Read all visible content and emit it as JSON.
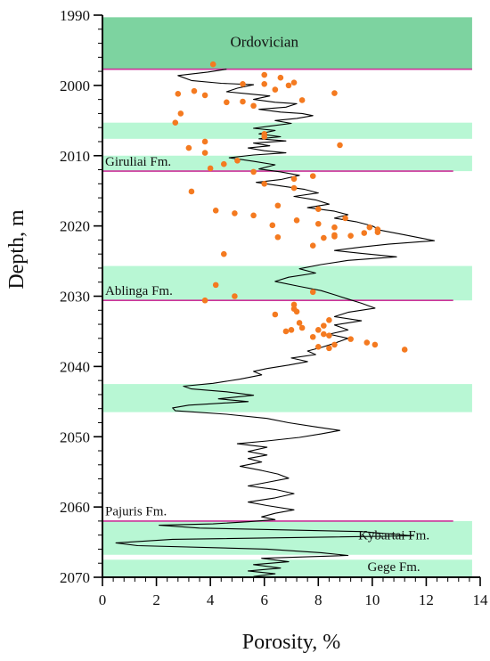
{
  "chart_data": {
    "type": "scatter",
    "xlabel": "Porosity, %",
    "ylabel": "Depth, m",
    "xlim": [
      0,
      14
    ],
    "ylim": [
      1990,
      2070
    ],
    "x_ticks": [
      0,
      2,
      4,
      6,
      8,
      10,
      12,
      14
    ],
    "y_ticks": [
      1990,
      2000,
      2010,
      2020,
      2030,
      2040,
      2050,
      2060,
      2070
    ],
    "grid": false,
    "colors": {
      "ordovician_band": "#7dd3a0",
      "interval_band": "#b8f7d4",
      "boundary_line": "#cc3399",
      "log_curve": "#000000",
      "core_points": "#f47a20",
      "axes": "#000000"
    },
    "zones": [
      {
        "label": "Ordovician",
        "top": 1990.3,
        "bottom": 1997.8,
        "kind": "dark"
      },
      {
        "label": "",
        "top": 2005.3,
        "bottom": 2007.6,
        "kind": "light"
      },
      {
        "label": "",
        "top": 2010.0,
        "bottom": 2012.2,
        "kind": "light"
      },
      {
        "label": "",
        "top": 2025.7,
        "bottom": 2030.6,
        "kind": "light"
      },
      {
        "label": "",
        "top": 2042.5,
        "bottom": 2046.5,
        "kind": "light"
      },
      {
        "label": "",
        "top": 2062.0,
        "bottom": 2066.8,
        "kind": "light"
      },
      {
        "label": "",
        "top": 2067.5,
        "bottom": 2070.0,
        "kind": "light"
      }
    ],
    "boundaries": [
      {
        "depth": 1997.7,
        "x_end": 13.7
      },
      {
        "depth": 2012.2,
        "x_end": 13.0
      },
      {
        "depth": 2030.6,
        "x_end": 13.0
      },
      {
        "depth": 2062.0,
        "x_end": 13.0
      }
    ],
    "formation_labels": [
      {
        "text": "Ordovician",
        "x": 6.0,
        "y": 1994.5,
        "anchor": "middle"
      },
      {
        "text": "Giruliai Fm.",
        "x": 0.1,
        "y": 2011.4,
        "anchor": "start"
      },
      {
        "text": "Ablinga Fm.",
        "x": 0.1,
        "y": 2029.8,
        "anchor": "start"
      },
      {
        "text": "Pajuris Fm.",
        "x": 0.1,
        "y": 2061.2,
        "anchor": "start"
      },
      {
        "text": "Kybartai Fm.",
        "x": 10.8,
        "y": 2064.6,
        "anchor": "middle"
      },
      {
        "text": "Gege Fm.",
        "x": 10.8,
        "y": 2069.1,
        "anchor": "middle"
      }
    ],
    "series": [
      {
        "name": "",
        "kind": "line",
        "points": [
          [
            4.6,
            1997.7
          ],
          [
            3.9,
            1998.1
          ],
          [
            2.8,
            1998.6
          ],
          [
            3.3,
            1999.3
          ],
          [
            4.4,
            1999.7
          ],
          [
            5.6,
            1999.9
          ],
          [
            5.0,
            2000.4
          ],
          [
            4.6,
            2000.9
          ],
          [
            5.4,
            2001.2
          ],
          [
            6.2,
            2001.5
          ],
          [
            5.6,
            2002.0
          ],
          [
            6.4,
            2002.4
          ],
          [
            7.2,
            2002.6
          ],
          [
            6.8,
            2003.1
          ],
          [
            5.8,
            2003.4
          ],
          [
            6.6,
            2003.8
          ],
          [
            7.4,
            2004.0
          ],
          [
            7.8,
            2004.3
          ],
          [
            7.2,
            2004.7
          ],
          [
            6.4,
            2005.0
          ],
          [
            7.0,
            2005.4
          ],
          [
            6.2,
            2005.8
          ],
          [
            5.6,
            2006.1
          ],
          [
            6.4,
            2006.4
          ],
          [
            5.8,
            2006.9
          ],
          [
            6.6,
            2007.3
          ],
          [
            5.8,
            2007.6
          ],
          [
            6.8,
            2007.9
          ],
          [
            5.6,
            2008.2
          ],
          [
            6.2,
            2008.6
          ],
          [
            5.4,
            2008.9
          ],
          [
            6.0,
            2009.3
          ],
          [
            6.8,
            2009.6
          ],
          [
            5.6,
            2009.9
          ],
          [
            4.7,
            2010.3
          ],
          [
            5.6,
            2010.8
          ],
          [
            6.4,
            2011.3
          ],
          [
            5.8,
            2011.9
          ],
          [
            6.6,
            2012.3
          ],
          [
            7.3,
            2012.8
          ],
          [
            6.6,
            2013.4
          ],
          [
            5.7,
            2013.8
          ],
          [
            6.6,
            2014.3
          ],
          [
            7.5,
            2014.8
          ],
          [
            8.0,
            2015.3
          ],
          [
            7.1,
            2015.8
          ],
          [
            7.9,
            2016.3
          ],
          [
            8.4,
            2016.9
          ],
          [
            7.6,
            2017.4
          ],
          [
            8.6,
            2017.9
          ],
          [
            9.1,
            2018.4
          ],
          [
            8.6,
            2018.9
          ],
          [
            9.4,
            2019.4
          ],
          [
            10.0,
            2020.0
          ],
          [
            10.3,
            2020.6
          ],
          [
            11.1,
            2021.2
          ],
          [
            12.3,
            2022.1
          ],
          [
            10.6,
            2022.6
          ],
          [
            9.6,
            2023.0
          ],
          [
            8.6,
            2023.5
          ],
          [
            9.6,
            2023.9
          ],
          [
            10.9,
            2024.4
          ],
          [
            9.1,
            2024.9
          ],
          [
            8.1,
            2025.5
          ],
          [
            7.3,
            2026.1
          ],
          [
            7.9,
            2026.7
          ],
          [
            6.9,
            2027.3
          ],
          [
            6.4,
            2027.9
          ],
          [
            7.3,
            2028.6
          ],
          [
            8.1,
            2029.2
          ],
          [
            8.6,
            2029.8
          ],
          [
            9.1,
            2030.4
          ],
          [
            9.6,
            2031.0
          ],
          [
            10.1,
            2031.7
          ],
          [
            9.1,
            2032.3
          ],
          [
            8.6,
            2032.9
          ],
          [
            9.6,
            2033.5
          ],
          [
            8.6,
            2034.1
          ],
          [
            9.1,
            2034.8
          ],
          [
            8.4,
            2035.4
          ],
          [
            9.1,
            2036.0
          ],
          [
            8.6,
            2036.7
          ],
          [
            8.1,
            2037.3
          ],
          [
            7.6,
            2037.8
          ],
          [
            7.9,
            2038.3
          ],
          [
            7.0,
            2038.8
          ],
          [
            7.6,
            2039.3
          ],
          [
            6.9,
            2039.8
          ],
          [
            6.1,
            2040.3
          ],
          [
            5.6,
            2040.7
          ],
          [
            5.9,
            2041.2
          ],
          [
            5.1,
            2041.8
          ],
          [
            4.1,
            2042.4
          ],
          [
            3.0,
            2042.8
          ],
          [
            3.3,
            2043.2
          ],
          [
            4.6,
            2043.6
          ],
          [
            5.6,
            2044.1
          ],
          [
            4.3,
            2044.6
          ],
          [
            5.4,
            2045.0
          ],
          [
            3.2,
            2045.5
          ],
          [
            2.6,
            2045.9
          ],
          [
            2.7,
            2046.3
          ],
          [
            4.6,
            2046.8
          ],
          [
            6.1,
            2047.4
          ],
          [
            6.9,
            2048.0
          ],
          [
            7.9,
            2048.6
          ],
          [
            8.8,
            2049.1
          ],
          [
            8.1,
            2049.6
          ],
          [
            7.3,
            2050.1
          ],
          [
            6.1,
            2050.6
          ],
          [
            5.0,
            2051.0
          ],
          [
            6.1,
            2051.5
          ],
          [
            5.4,
            2052.1
          ],
          [
            6.1,
            2052.6
          ],
          [
            5.4,
            2053.1
          ],
          [
            5.9,
            2053.6
          ],
          [
            5.1,
            2054.2
          ],
          [
            5.9,
            2054.8
          ],
          [
            6.5,
            2055.3
          ],
          [
            6.9,
            2055.9
          ],
          [
            6.1,
            2056.5
          ],
          [
            5.4,
            2057.0
          ],
          [
            6.4,
            2057.5
          ],
          [
            7.1,
            2058.1
          ],
          [
            6.4,
            2058.7
          ],
          [
            5.4,
            2059.3
          ],
          [
            6.1,
            2059.8
          ],
          [
            7.1,
            2060.4
          ],
          [
            6.4,
            2060.9
          ],
          [
            5.9,
            2061.4
          ],
          [
            6.4,
            2061.8
          ],
          [
            5.4,
            2062.1
          ],
          [
            4.1,
            2062.4
          ],
          [
            2.1,
            2062.6
          ],
          [
            3.6,
            2063.0
          ],
          [
            9.6,
            2063.5
          ],
          [
            11.5,
            2064.1
          ],
          [
            2.6,
            2064.6
          ],
          [
            0.5,
            2065.1
          ],
          [
            1.3,
            2065.5
          ],
          [
            6.1,
            2066.0
          ],
          [
            8.1,
            2066.5
          ],
          [
            9.1,
            2066.9
          ],
          [
            5.9,
            2067.3
          ],
          [
            6.9,
            2067.8
          ],
          [
            5.6,
            2068.2
          ],
          [
            6.6,
            2068.7
          ],
          [
            5.4,
            2069.1
          ],
          [
            6.4,
            2069.5
          ],
          [
            5.6,
            2069.9
          ]
        ]
      },
      {
        "name": "",
        "kind": "scatter",
        "points": [
          [
            4.1,
            1997.0
          ],
          [
            6.0,
            1998.5
          ],
          [
            6.6,
            1998.9
          ],
          [
            5.2,
            1999.8
          ],
          [
            6.0,
            1999.8
          ],
          [
            6.9,
            2000.0
          ],
          [
            7.1,
            1999.6
          ],
          [
            3.4,
            2000.8
          ],
          [
            2.8,
            2001.2
          ],
          [
            3.8,
            2001.4
          ],
          [
            6.4,
            2000.6
          ],
          [
            8.6,
            2001.1
          ],
          [
            4.6,
            2002.4
          ],
          [
            5.2,
            2002.3
          ],
          [
            5.6,
            2002.9
          ],
          [
            7.4,
            2002.1
          ],
          [
            2.9,
            2004.0
          ],
          [
            2.7,
            2005.3
          ],
          [
            6.0,
            2006.9
          ],
          [
            6.0,
            2007.3
          ],
          [
            3.8,
            2008.0
          ],
          [
            8.8,
            2008.5
          ],
          [
            3.2,
            2008.9
          ],
          [
            3.8,
            2009.6
          ],
          [
            5.0,
            2010.7
          ],
          [
            4.5,
            2011.2
          ],
          [
            4.0,
            2011.8
          ],
          [
            5.6,
            2012.3
          ],
          [
            7.8,
            2012.9
          ],
          [
            7.1,
            2013.3
          ],
          [
            6.0,
            2014.0
          ],
          [
            7.1,
            2014.6
          ],
          [
            3.3,
            2015.1
          ],
          [
            6.5,
            2017.1
          ],
          [
            8.0,
            2017.6
          ],
          [
            4.2,
            2017.8
          ],
          [
            4.9,
            2018.2
          ],
          [
            5.6,
            2018.5
          ],
          [
            7.2,
            2019.2
          ],
          [
            9.0,
            2018.9
          ],
          [
            6.3,
            2019.9
          ],
          [
            8.0,
            2019.7
          ],
          [
            8.6,
            2020.2
          ],
          [
            9.9,
            2020.2
          ],
          [
            10.2,
            2020.5
          ],
          [
            10.2,
            2020.9
          ],
          [
            9.7,
            2021.0
          ],
          [
            8.6,
            2021.3
          ],
          [
            9.2,
            2021.4
          ],
          [
            6.5,
            2021.6
          ],
          [
            8.2,
            2021.7
          ],
          [
            8.6,
            2021.5
          ],
          [
            7.8,
            2022.8
          ],
          [
            4.5,
            2024.0
          ],
          [
            4.2,
            2028.4
          ],
          [
            7.8,
            2029.4
          ],
          [
            3.8,
            2030.6
          ],
          [
            4.9,
            2030.0
          ],
          [
            7.1,
            2031.2
          ],
          [
            7.1,
            2031.8
          ],
          [
            6.4,
            2032.6
          ],
          [
            7.2,
            2032.2
          ],
          [
            8.4,
            2033.4
          ],
          [
            7.3,
            2033.8
          ],
          [
            8.2,
            2034.2
          ],
          [
            7.4,
            2034.5
          ],
          [
            7.0,
            2034.8
          ],
          [
            8.0,
            2034.8
          ],
          [
            6.8,
            2035.0
          ],
          [
            8.2,
            2035.4
          ],
          [
            7.8,
            2035.8
          ],
          [
            8.4,
            2035.6
          ],
          [
            9.2,
            2036.1
          ],
          [
            9.8,
            2036.6
          ],
          [
            8.6,
            2036.9
          ],
          [
            8.0,
            2037.2
          ],
          [
            10.1,
            2036.9
          ],
          [
            8.4,
            2037.4
          ],
          [
            11.2,
            2037.6
          ]
        ]
      }
    ]
  }
}
